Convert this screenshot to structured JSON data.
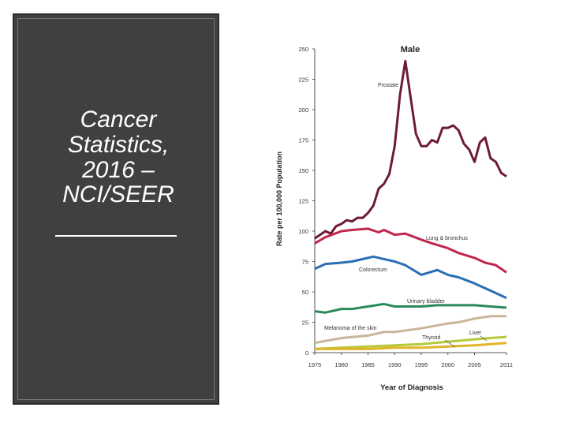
{
  "slide": {
    "title_lines": [
      "Cancer",
      "Statistics,",
      "2016 –",
      "NCI/SEER"
    ]
  },
  "chart_data": {
    "type": "line",
    "title": "Male",
    "xlabel": "Year of Diagnosis",
    "ylabel": "Rate per 100,000 Population",
    "xlim": [
      1975,
      2011
    ],
    "ylim": [
      0,
      250
    ],
    "x_ticks": [
      "1975",
      "1980",
      "1985",
      "1990",
      "1995",
      "2000",
      "2005",
      "2011"
    ],
    "y_ticks": [
      "250",
      "225",
      "200",
      "175",
      "150",
      "125",
      "100",
      "75",
      "50",
      "25",
      "0"
    ],
    "series": [
      {
        "name": "Prostate",
        "color": "#6e1a3c",
        "x": [
          1975,
          1976,
          1977,
          1978,
          1979,
          1980,
          1981,
          1982,
          1983,
          1984,
          1985,
          1986,
          1987,
          1988,
          1989,
          1990,
          1991,
          1992,
          1993,
          1994,
          1995,
          1996,
          1997,
          1998,
          1999,
          2000,
          2001,
          2002,
          2003,
          2004,
          2005,
          2006,
          2007,
          2008,
          2009,
          2010,
          2011
        ],
        "values": [
          94,
          97,
          100,
          98,
          104,
          106,
          109,
          108,
          111,
          111,
          115,
          121,
          135,
          139,
          147,
          170,
          212,
          240,
          210,
          180,
          170,
          170,
          175,
          173,
          185,
          185,
          187,
          183,
          172,
          167,
          157,
          173,
          177,
          160,
          157,
          148,
          145
        ]
      },
      {
        "name": "Lung & bronchus",
        "color": "#c0264e",
        "x": [
          1975,
          1977,
          1980,
          1982,
          1985,
          1987,
          1988,
          1990,
          1992,
          1995,
          1997,
          2000,
          2002,
          2005,
          2007,
          2009,
          2011
        ],
        "values": [
          90,
          95,
          100,
          101,
          102,
          99,
          101,
          97,
          98,
          93,
          90,
          86,
          82,
          78,
          74,
          72,
          66
        ]
      },
      {
        "name": "Colorectum",
        "color": "#2a6eb5",
        "x": [
          1975,
          1977,
          1980,
          1982,
          1985,
          1986,
          1988,
          1990,
          1992,
          1995,
          1998,
          2000,
          2002,
          2005,
          2007,
          2009,
          2011
        ],
        "values": [
          69,
          73,
          74,
          75,
          78,
          79,
          77,
          75,
          72,
          64,
          68,
          64,
          62,
          57,
          53,
          49,
          45
        ]
      },
      {
        "name": "Urinary bladder",
        "color": "#2a8a5a",
        "x": [
          1975,
          1977,
          1980,
          1982,
          1985,
          1988,
          1990,
          1992,
          1995,
          1998,
          2000,
          2002,
          2005,
          2008,
          2011
        ],
        "values": [
          34,
          33,
          36,
          36,
          38,
          40,
          38,
          38,
          38,
          39,
          39,
          39,
          39,
          38,
          37
        ]
      },
      {
        "name": "Melanoma of the skin",
        "color": "#c8b59a",
        "x": [
          1975,
          1980,
          1985,
          1988,
          1990,
          1995,
          2000,
          2002,
          2005,
          2008,
          2011
        ],
        "values": [
          8,
          12,
          14,
          17,
          17,
          20,
          24,
          25,
          28,
          30,
          30
        ]
      },
      {
        "name": "Liver",
        "color": "#b5c93a",
        "x": [
          1975,
          1980,
          1985,
          1990,
          1995,
          2000,
          2005,
          2008,
          2011
        ],
        "values": [
          3,
          4,
          5,
          6,
          7,
          9,
          11,
          12,
          13
        ]
      },
      {
        "name": "Thyroid",
        "color": "#e0b52a",
        "x": [
          1975,
          1980,
          1985,
          1990,
          1995,
          2000,
          2005,
          2008,
          2011
        ],
        "values": [
          3,
          3,
          3,
          4,
          4,
          5,
          6,
          7,
          8
        ]
      }
    ],
    "labels": {
      "prostate": "Prostate",
      "lung": "Lung & bronchus",
      "colorectum": "Colorectum",
      "bladder": "Urinary bladder",
      "melanoma": "Melanoma of the skin",
      "liver": "Liver",
      "thyroid": "Thyroid"
    }
  }
}
